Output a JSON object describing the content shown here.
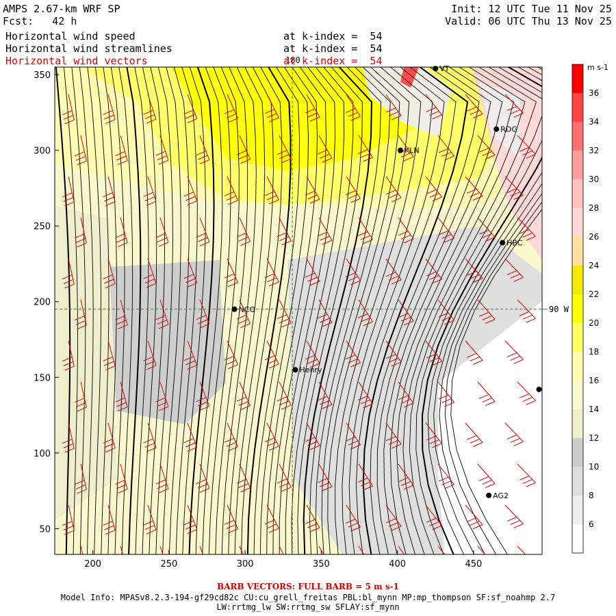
{
  "header": {
    "title": "AMPS 2.67-km WRF SP",
    "forecast_label": "Fcst:",
    "forecast_value": "42 h",
    "init": "Init: 12 UTC Tue 11 Nov 25",
    "valid": "Valid: 06 UTC Thu 13 Nov 25",
    "fields": [
      {
        "name": "Horizontal wind speed",
        "level": "at k-index =  54",
        "color": "#000000"
      },
      {
        "name": "Horizontal wind streamlines",
        "level": "at k-index =  54",
        "color": "#000000"
      },
      {
        "name": "Horizontal wind vectors",
        "level": "at k-index =  54",
        "color": "#e00000"
      }
    ]
  },
  "chart_data": {
    "type": "heatmap",
    "title": "Horizontal wind speed",
    "x_ticks": [
      200,
      250,
      300,
      350,
      400,
      450
    ],
    "y_ticks": [
      50,
      100,
      150,
      200,
      250,
      300,
      350
    ],
    "xlim": [
      175,
      495
    ],
    "ylim": [
      33,
      355
    ],
    "grid": false,
    "reference_lines": [
      {
        "label": "180",
        "orientation": "vertical",
        "x": 331
      },
      {
        "label": "90 W",
        "orientation": "horizontal",
        "y": 195
      }
    ],
    "stations": [
      {
        "name": "NCO",
        "x": 293,
        "y": 195
      },
      {
        "name": "Henry",
        "x": 333,
        "y": 155
      },
      {
        "name": "KLN",
        "x": 402,
        "y": 300
      },
      {
        "name": "RDG",
        "x": 465,
        "y": 314
      },
      {
        "name": "HBC",
        "x": 469,
        "y": 239
      },
      {
        "name": "AG2",
        "x": 460,
        "y": 72
      },
      {
        "name": "VT",
        "x": 425,
        "y": 354
      },
      {
        "name": "",
        "x": 493,
        "y": 142
      }
    ],
    "colorbar": {
      "units": "m s-1",
      "levels": [
        6,
        8,
        10,
        12,
        14,
        16,
        18,
        20,
        22,
        24,
        26,
        28,
        30,
        32,
        34,
        36
      ],
      "colors": [
        "#ffffff",
        "#eeeeee",
        "#dddddd",
        "#cccccc",
        "#eeeecc",
        "#f8f8cc",
        "#fffcb0",
        "#ffff66",
        "#ffff00",
        "#f6e800",
        "#ffe0a0",
        "#ffd8d8",
        "#ffc0c0",
        "#ff9c9c",
        "#ff7070",
        "#ff4444",
        "#ff0000"
      ]
    },
    "barb_note": "BARB VECTORS: FULL BARB = 5 m s-1"
  },
  "footer": {
    "model_info": "Model Info: MPASv8.2.3-194-gf29cd82c CU:cu_grell_freitas PBL:bl_mynn MP:mp_thompson SF:sf_noahmp 2.7",
    "physics": "LW:rrtmg_lw SW:rrtmg_sw SFLAY:sf_mynn"
  }
}
